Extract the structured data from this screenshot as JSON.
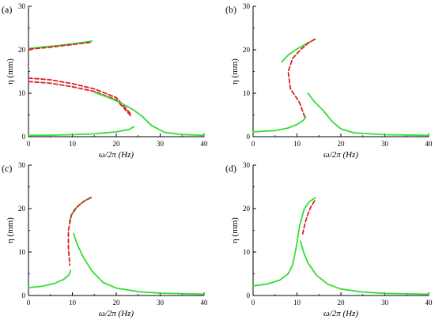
{
  "figure": {
    "colors": {
      "stable": "#33dd33",
      "unstable": "#dd2222",
      "axis": "#000000"
    }
  },
  "chart_data": [
    {
      "panel_label": "(a)",
      "type": "line",
      "xlabel": "ω/2π (Hz)",
      "ylabel": "η (mm)",
      "xlim": [
        0,
        40
      ],
      "ylim": [
        0,
        30
      ],
      "xticks": [
        "0",
        "10",
        "20",
        "30",
        "40"
      ],
      "yticks": [
        "0",
        "10",
        "20",
        "30"
      ],
      "series": [
        {
          "style": "stable",
          "x": [
            14.5,
            11,
            7,
            3,
            0
          ],
          "y": [
            22,
            21.5,
            21,
            20.6,
            20.3
          ]
        },
        {
          "style": "unstable",
          "x": [
            14,
            10,
            5,
            0
          ],
          "y": [
            21.7,
            21.2,
            20.6,
            20.1
          ]
        },
        {
          "style": "unstable",
          "x": [
            0,
            5,
            10,
            15,
            20,
            23.5
          ],
          "y": [
            13.5,
            13.1,
            12.2,
            11.0,
            9.0,
            5.0
          ]
        },
        {
          "style": "unstable",
          "x": [
            0,
            5,
            10,
            15,
            20,
            23.5
          ],
          "y": [
            12.7,
            12.3,
            11.5,
            10.4,
            8.5,
            4.6
          ]
        },
        {
          "style": "stable",
          "x": [
            15,
            18,
            21,
            24,
            26,
            28,
            31,
            35,
            40
          ],
          "y": [
            10.2,
            9.1,
            7.8,
            6.1,
            4.6,
            2.6,
            1.0,
            0.5,
            0.3
          ]
        },
        {
          "style": "stable",
          "x": [
            0,
            5,
            10,
            15,
            20,
            23,
            24
          ],
          "y": [
            0.3,
            0.35,
            0.45,
            0.65,
            1.1,
            1.7,
            2.3
          ]
        }
      ]
    },
    {
      "panel_label": "(b)",
      "type": "line",
      "xlabel": "ω/2π (Hz)",
      "ylabel": "η (mm)",
      "xlim": [
        0,
        40
      ],
      "ylim": [
        0,
        30
      ],
      "xticks": [
        "0",
        "10",
        "20",
        "30",
        "40"
      ],
      "yticks": [
        "0",
        "10",
        "20",
        "30"
      ],
      "series": [
        {
          "style": "stable",
          "x": [
            6.5,
            8,
            10,
            12,
            13.5,
            14.2
          ],
          "y": [
            17.2,
            18.8,
            20.2,
            21.3,
            22.1,
            22.5
          ]
        },
        {
          "style": "unstable",
          "x": [
            14,
            12.5,
            10.8,
            9,
            8,
            8.5,
            10.5,
            11.8
          ],
          "y": [
            22.4,
            21.5,
            20,
            18,
            15,
            11,
            8,
            4.5
          ]
        },
        {
          "style": "stable",
          "x": [
            0,
            5,
            8,
            10,
            11.5,
            12
          ],
          "y": [
            1.1,
            1.4,
            2.0,
            2.8,
            3.8,
            4.5
          ]
        },
        {
          "style": "stable",
          "x": [
            12.5,
            14,
            16,
            18,
            20,
            23,
            30,
            40
          ],
          "y": [
            10,
            8,
            6,
            3.5,
            1.8,
            0.9,
            0.45,
            0.3
          ]
        }
      ]
    },
    {
      "panel_label": "(c)",
      "type": "line",
      "xlabel": "ω/2π (Hz)",
      "ylabel": "η (mm)",
      "xlim": [
        0,
        40
      ],
      "ylim": [
        0,
        30
      ],
      "xticks": [
        "0",
        "10",
        "20",
        "30",
        "40"
      ],
      "yticks": [
        "0",
        "10",
        "20",
        "30"
      ],
      "series": [
        {
          "style": "stable",
          "x": [
            9.3,
            9.8,
            10.5,
            11.5,
            12.5,
            13.5,
            14.3
          ],
          "y": [
            17,
            18.5,
            19.8,
            20.8,
            21.6,
            22.2,
            22.6
          ]
        },
        {
          "style": "unstable",
          "x": [
            14.2,
            12.5,
            11,
            9.8,
            9.1,
            9.1,
            9.4
          ],
          "y": [
            22.5,
            21.6,
            20.3,
            18.6,
            15,
            11,
            7
          ]
        },
        {
          "style": "stable",
          "x": [
            0,
            3,
            6,
            8,
            9.2,
            9.6
          ],
          "y": [
            1.8,
            2.1,
            2.8,
            3.7,
            4.7,
            5.8
          ]
        },
        {
          "style": "stable",
          "x": [
            10.3,
            11,
            12.5,
            14.5,
            17,
            20,
            25,
            30,
            40
          ],
          "y": [
            14.2,
            12,
            8.8,
            5.6,
            3.0,
            1.7,
            0.9,
            0.55,
            0.3
          ]
        }
      ]
    },
    {
      "panel_label": "(d)",
      "type": "line",
      "xlabel": "ω/2π (Hz)",
      "ylabel": "η (mm)",
      "xlim": [
        0,
        40
      ],
      "ylim": [
        0,
        30
      ],
      "xticks": [
        "0",
        "10",
        "20",
        "30",
        "40"
      ],
      "yticks": [
        "0",
        "10",
        "20",
        "30"
      ],
      "series": [
        {
          "style": "stable",
          "x": [
            0,
            3,
            6,
            8,
            9,
            9.8,
            10.6,
            11.6,
            12.8,
            14.2
          ],
          "y": [
            2.2,
            2.6,
            3.5,
            5.0,
            7.0,
            11,
            16,
            19.8,
            21.6,
            22.5
          ]
        },
        {
          "style": "unstable",
          "x": [
            14,
            13.2,
            12.4,
            11.8,
            11.3
          ],
          "y": [
            21.8,
            20.5,
            18.5,
            16.5,
            14.2
          ]
        },
        {
          "style": "stable",
          "x": [
            10.8,
            11.5,
            12.5,
            14.5,
            17,
            20,
            25,
            30,
            40
          ],
          "y": [
            12.5,
            10,
            7.5,
            4.6,
            2.6,
            1.5,
            0.8,
            0.5,
            0.3
          ]
        }
      ]
    }
  ]
}
